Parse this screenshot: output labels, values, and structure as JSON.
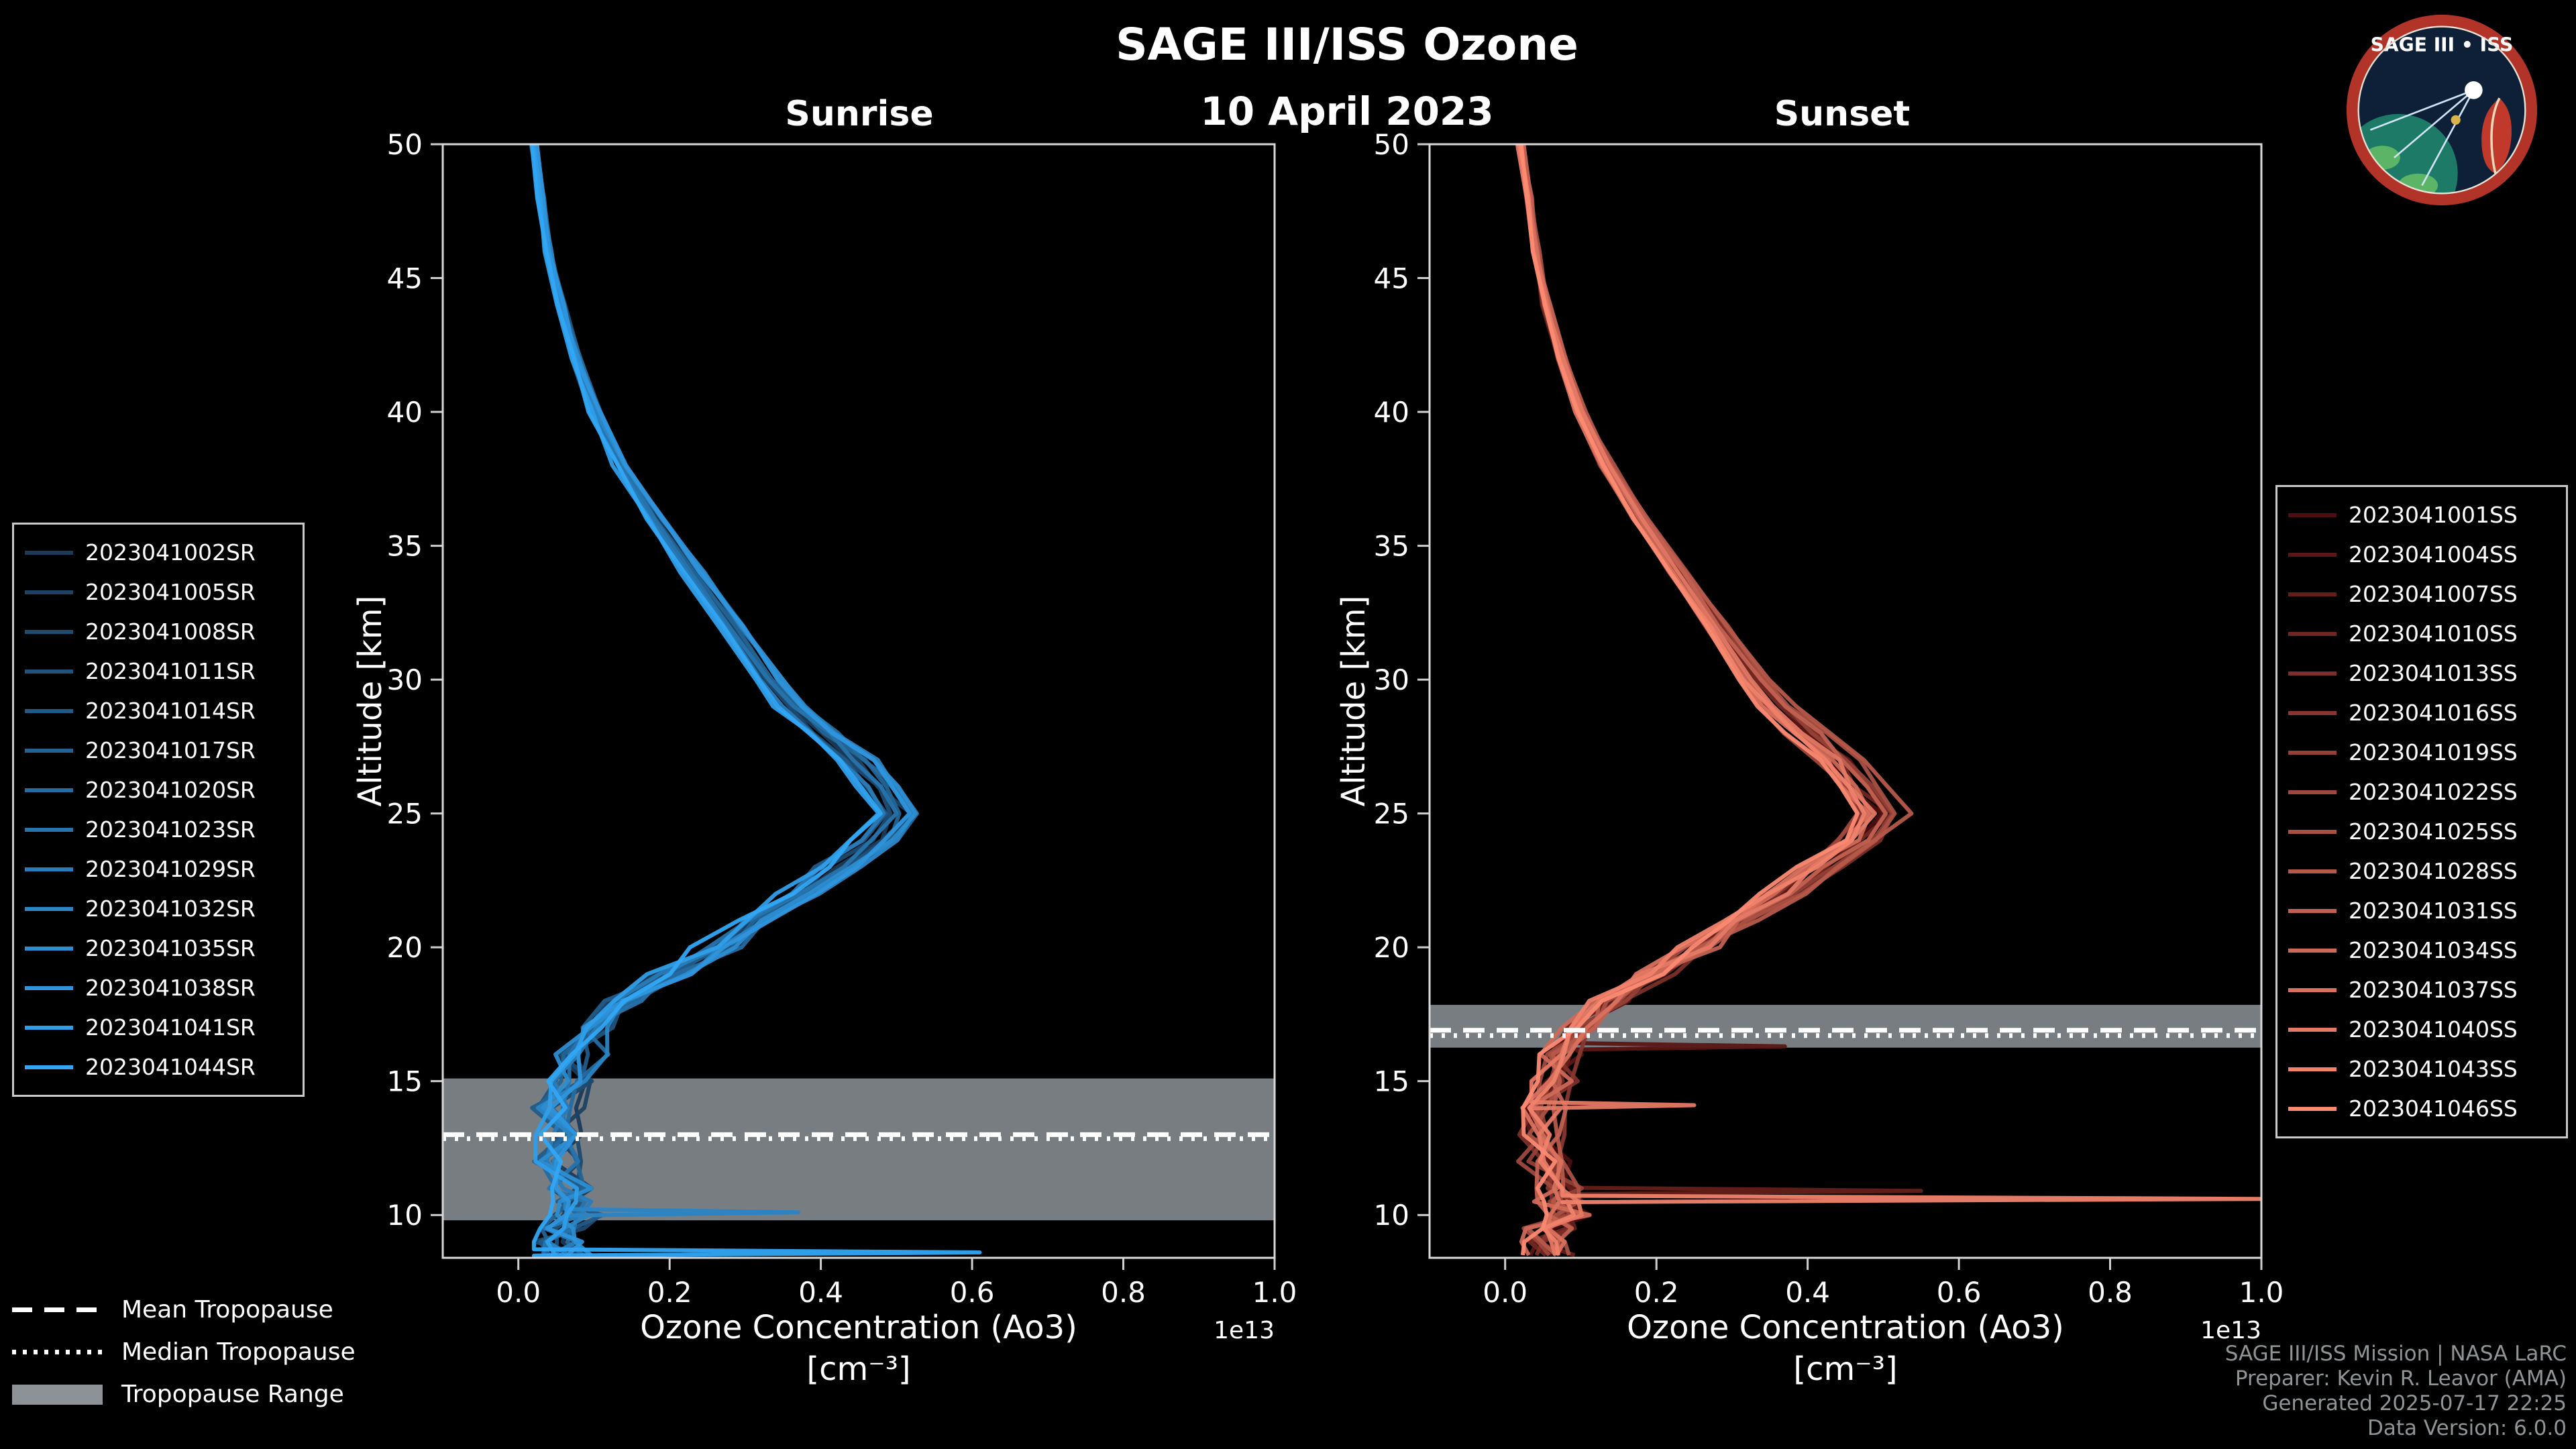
{
  "header": {
    "title": "SAGE III/ISS Ozone",
    "date": "10 April 2023"
  },
  "logo": {
    "title": "SAGE III • ISS"
  },
  "style": {
    "background": "#000000",
    "band_color": "#9aa0a5",
    "tropopause_line_color": "#ffffff",
    "axis_color": "#d9d9d9"
  },
  "chart_data": [
    {
      "type": "line",
      "title": "Sunrise",
      "xlabel": "Ozone Concentration (Ao3)",
      "xlabel_units": "[cm⁻³]",
      "ylabel": "Altitude [km]",
      "xlim": [
        -0.1,
        1.0
      ],
      "ylim": [
        8.4,
        50
      ],
      "x_scale": "1e13",
      "xticks": [
        0.0,
        0.2,
        0.4,
        0.6,
        0.8,
        1.0
      ],
      "yticks": [
        10,
        15,
        20,
        25,
        30,
        35,
        40,
        45,
        50
      ],
      "legend_position": "left",
      "color_range": [
        "#1b3a58",
        "#31a6f5"
      ],
      "series_names": [
        "2023041002SR",
        "2023041005SR",
        "2023041008SR",
        "2023041011SR",
        "2023041014SR",
        "2023041017SR",
        "2023041020SR",
        "2023041023SR",
        "2023041029SR",
        "2023041032SR",
        "2023041035SR",
        "2023041038SR",
        "2023041041SR",
        "2023041044SR"
      ],
      "profile_altitude_km": [
        50,
        48,
        46,
        44,
        42,
        40,
        38,
        36,
        34,
        32,
        30,
        29,
        28,
        27,
        26,
        25,
        24,
        23,
        22,
        21,
        20,
        19,
        18,
        17,
        16,
        15,
        14,
        13,
        12,
        11,
        10.5,
        10,
        9.5,
        9,
        8.5
      ],
      "profile_mean_concentration_1e13": [
        0.02,
        0.03,
        0.04,
        0.055,
        0.075,
        0.1,
        0.135,
        0.18,
        0.23,
        0.28,
        0.33,
        0.36,
        0.4,
        0.44,
        0.47,
        0.5,
        0.47,
        0.42,
        0.37,
        0.31,
        0.26,
        0.2,
        0.14,
        0.1,
        0.08,
        0.065,
        0.055,
        0.05,
        0.055,
        0.065,
        0.07,
        0.08,
        0.06,
        0.05,
        0.06
      ],
      "tropopause": {
        "mean_km": 13.0,
        "median_km": 12.85,
        "range_km": [
          9.8,
          15.1
        ]
      },
      "outlier_spikes": [
        {
          "series_index": 13,
          "altitude_km": 8.6,
          "value_1e13": 0.61
        },
        {
          "series_index": 9,
          "altitude_km": 10.1,
          "value_1e13": 0.37
        }
      ]
    },
    {
      "type": "line",
      "title": "Sunset",
      "xlabel": "Ozone Concentration (Ao3)",
      "xlabel_units": "[cm⁻³]",
      "ylabel": "Altitude [km]",
      "xlim": [
        -0.1,
        1.0
      ],
      "ylim": [
        8.4,
        50
      ],
      "x_scale": "1e13",
      "xticks": [
        0.0,
        0.2,
        0.4,
        0.6,
        0.8,
        1.0
      ],
      "yticks": [
        10,
        15,
        20,
        25,
        30,
        35,
        40,
        45,
        50
      ],
      "legend_position": "right",
      "color_range": [
        "#4d0e0e",
        "#fc8a72"
      ],
      "series_names": [
        "2023041001SS",
        "2023041004SS",
        "2023041007SS",
        "2023041010SS",
        "2023041013SS",
        "2023041016SS",
        "2023041019SS",
        "2023041022SS",
        "2023041025SS",
        "2023041028SS",
        "2023041031SS",
        "2023041034SS",
        "2023041037SS",
        "2023041040SS",
        "2023041043SS",
        "2023041046SS"
      ],
      "profile_altitude_km": [
        50,
        48,
        46,
        44,
        42,
        40,
        38,
        36,
        34,
        32,
        30,
        29,
        28,
        27,
        26,
        25,
        24,
        23,
        22,
        21,
        20,
        19,
        18,
        17,
        16,
        15,
        14,
        13,
        12,
        11,
        10.5,
        10,
        9.5,
        9,
        8.5
      ],
      "profile_mean_concentration_1e13": [
        0.02,
        0.03,
        0.04,
        0.055,
        0.075,
        0.1,
        0.135,
        0.18,
        0.23,
        0.28,
        0.33,
        0.36,
        0.4,
        0.44,
        0.47,
        0.5,
        0.47,
        0.42,
        0.37,
        0.31,
        0.26,
        0.2,
        0.14,
        0.1,
        0.08,
        0.065,
        0.055,
        0.05,
        0.055,
        0.065,
        0.07,
        0.08,
        0.06,
        0.05,
        0.06
      ],
      "tropopause": {
        "mean_km": 16.9,
        "median_km": 16.7,
        "range_km": [
          16.25,
          17.85
        ]
      },
      "outlier_spikes": [
        {
          "series_index": 14,
          "altitude_km": 10.6,
          "value_1e13": 1.0
        },
        {
          "series_index": 2,
          "altitude_km": 10.9,
          "value_1e13": 0.55
        },
        {
          "series_index": 1,
          "altitude_km": 16.3,
          "value_1e13": 0.37
        },
        {
          "series_index": 13,
          "altitude_km": 14.1,
          "value_1e13": 0.25
        }
      ]
    }
  ],
  "tropopause_legend": {
    "items": [
      {
        "label": "Mean Tropopause",
        "style": "dashed"
      },
      {
        "label": "Median Tropopause",
        "style": "dotted"
      },
      {
        "label": "Tropopause Range",
        "style": "band"
      }
    ]
  },
  "credits": {
    "lines": [
      "SAGE III/ISS Mission | NASA LaRC",
      "Preparer: Kevin R. Leavor (AMA)",
      "Generated 2025-07-17 22:25",
      "Data Version: 6.0.0"
    ]
  }
}
